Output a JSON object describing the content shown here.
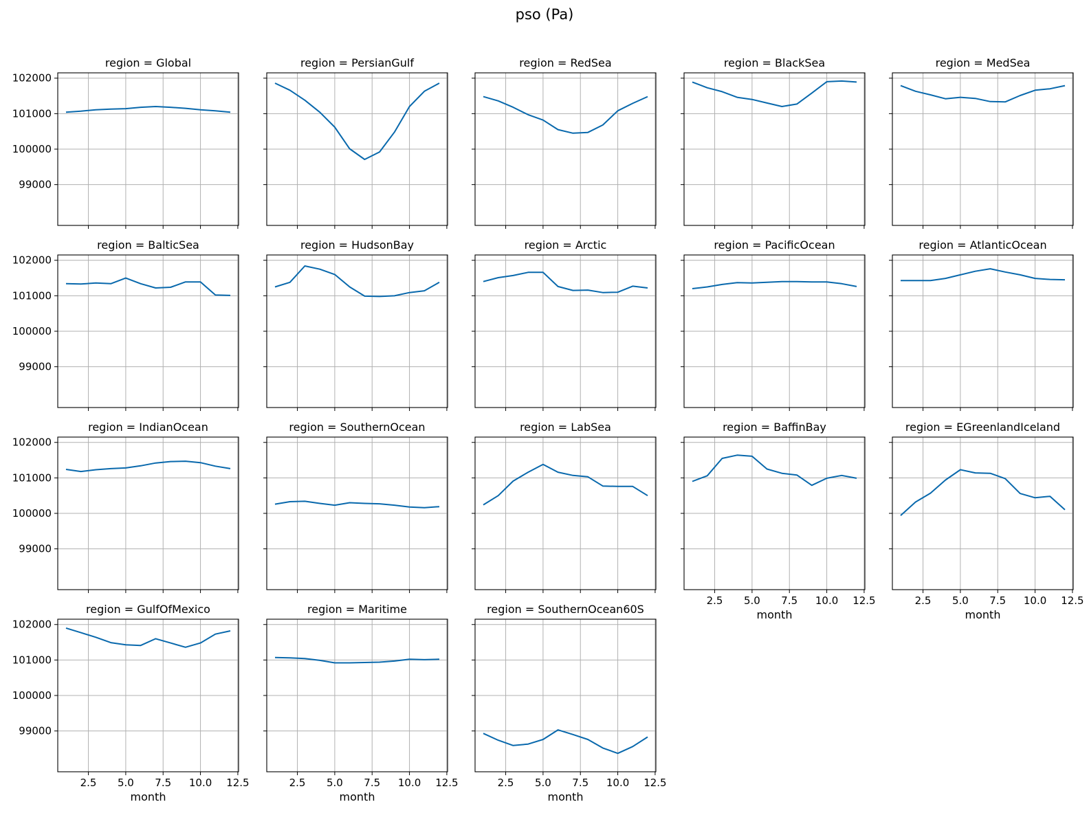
{
  "chart_data": {
    "type": "line",
    "title": "pso (Pa)",
    "xlabel": "month",
    "ylabel": "",
    "xlim": [
      0.45,
      12.55
    ],
    "ylim": [
      102150,
      97850
    ],
    "y_inverted": true,
    "xticks": [
      2.5,
      5.0,
      7.5,
      10.0,
      12.5
    ],
    "xtick_labels": [
      "2.5",
      "5.0",
      "7.5",
      "10.0",
      "12.5"
    ],
    "yticks": [
      99000,
      100000,
      101000,
      102000
    ],
    "ytick_labels": [
      "99000",
      "100000",
      "101000",
      "102000"
    ],
    "grid": true,
    "line_color": "#0868ac",
    "x": [
      1,
      2,
      3,
      4,
      5,
      6,
      7,
      8,
      9,
      10,
      11,
      12
    ],
    "panels": [
      {
        "title": "region = Global",
        "values": [
          101040,
          101070,
          101110,
          101130,
          101140,
          101180,
          101200,
          101180,
          101150,
          101110,
          101080,
          101040
        ]
      },
      {
        "title": "region = PersianGulf",
        "values": [
          101860,
          101660,
          101380,
          101040,
          100620,
          100010,
          99710,
          99920,
          100480,
          101200,
          101630,
          101860
        ]
      },
      {
        "title": "region = RedSea",
        "values": [
          101480,
          101360,
          101180,
          100970,
          100820,
          100550,
          100450,
          100470,
          100680,
          101080,
          101290,
          101480
        ]
      },
      {
        "title": "region = BlackSea",
        "values": [
          101890,
          101730,
          101620,
          101460,
          101400,
          101300,
          101200,
          101270,
          101580,
          101900,
          101920,
          101890
        ]
      },
      {
        "title": "region = MedSea",
        "values": [
          101790,
          101630,
          101530,
          101420,
          101460,
          101430,
          101340,
          101330,
          101510,
          101660,
          101700,
          101790
        ]
      },
      {
        "title": "region = BalticSea",
        "values": [
          101340,
          101330,
          101360,
          101340,
          101500,
          101340,
          101220,
          101240,
          101390,
          101390,
          101020,
          101010
        ]
      },
      {
        "title": "region = HudsonBay",
        "values": [
          101250,
          101380,
          101840,
          101750,
          101600,
          101250,
          100990,
          100980,
          101000,
          101090,
          101140,
          101380
        ]
      },
      {
        "title": "region = Arctic",
        "values": [
          101400,
          101510,
          101570,
          101660,
          101660,
          101260,
          101150,
          101160,
          101090,
          101100,
          101270,
          101220
        ]
      },
      {
        "title": "region = PacificOcean",
        "values": [
          101200,
          101250,
          101320,
          101370,
          101360,
          101380,
          101400,
          101400,
          101390,
          101390,
          101340,
          101260
        ]
      },
      {
        "title": "region = AtlanticOcean",
        "values": [
          101430,
          101430,
          101430,
          101490,
          101590,
          101690,
          101760,
          101670,
          101590,
          101490,
          101460,
          101450
        ]
      },
      {
        "title": "region = IndianOcean",
        "values": [
          101240,
          101180,
          101230,
          101260,
          101280,
          101340,
          101420,
          101460,
          101470,
          101430,
          101330,
          101260
        ]
      },
      {
        "title": "region = SouthernOcean",
        "values": [
          100260,
          100330,
          100340,
          100280,
          100230,
          100300,
          100280,
          100270,
          100230,
          100180,
          100160,
          100190
        ]
      },
      {
        "title": "region = LabSea",
        "values": [
          100240,
          100500,
          100910,
          101160,
          101380,
          101160,
          101070,
          101030,
          100770,
          100760,
          100760,
          100500
        ]
      },
      {
        "title": "region = BaffinBay",
        "values": [
          100900,
          101060,
          101550,
          101640,
          101610,
          101250,
          101130,
          101080,
          100790,
          100990,
          101070,
          100990
        ]
      },
      {
        "title": "region = EGreenlandIceland",
        "values": [
          99940,
          100320,
          100570,
          100940,
          101230,
          101140,
          101130,
          100980,
          100560,
          100440,
          100480,
          100100
        ]
      },
      {
        "title": "region = GulfOfMexico",
        "values": [
          101900,
          101770,
          101640,
          101490,
          101430,
          101410,
          101600,
          101480,
          101360,
          101480,
          101730,
          101820
        ]
      },
      {
        "title": "region = Maritime",
        "values": [
          101070,
          101060,
          101040,
          100990,
          100920,
          100920,
          100930,
          100940,
          100970,
          101020,
          101010,
          101020
        ]
      },
      {
        "title": "region = SouthernOcean60S",
        "values": [
          98930,
          98740,
          98590,
          98630,
          98760,
          99030,
          98900,
          98760,
          98520,
          98370,
          98560,
          98830
        ]
      }
    ]
  }
}
